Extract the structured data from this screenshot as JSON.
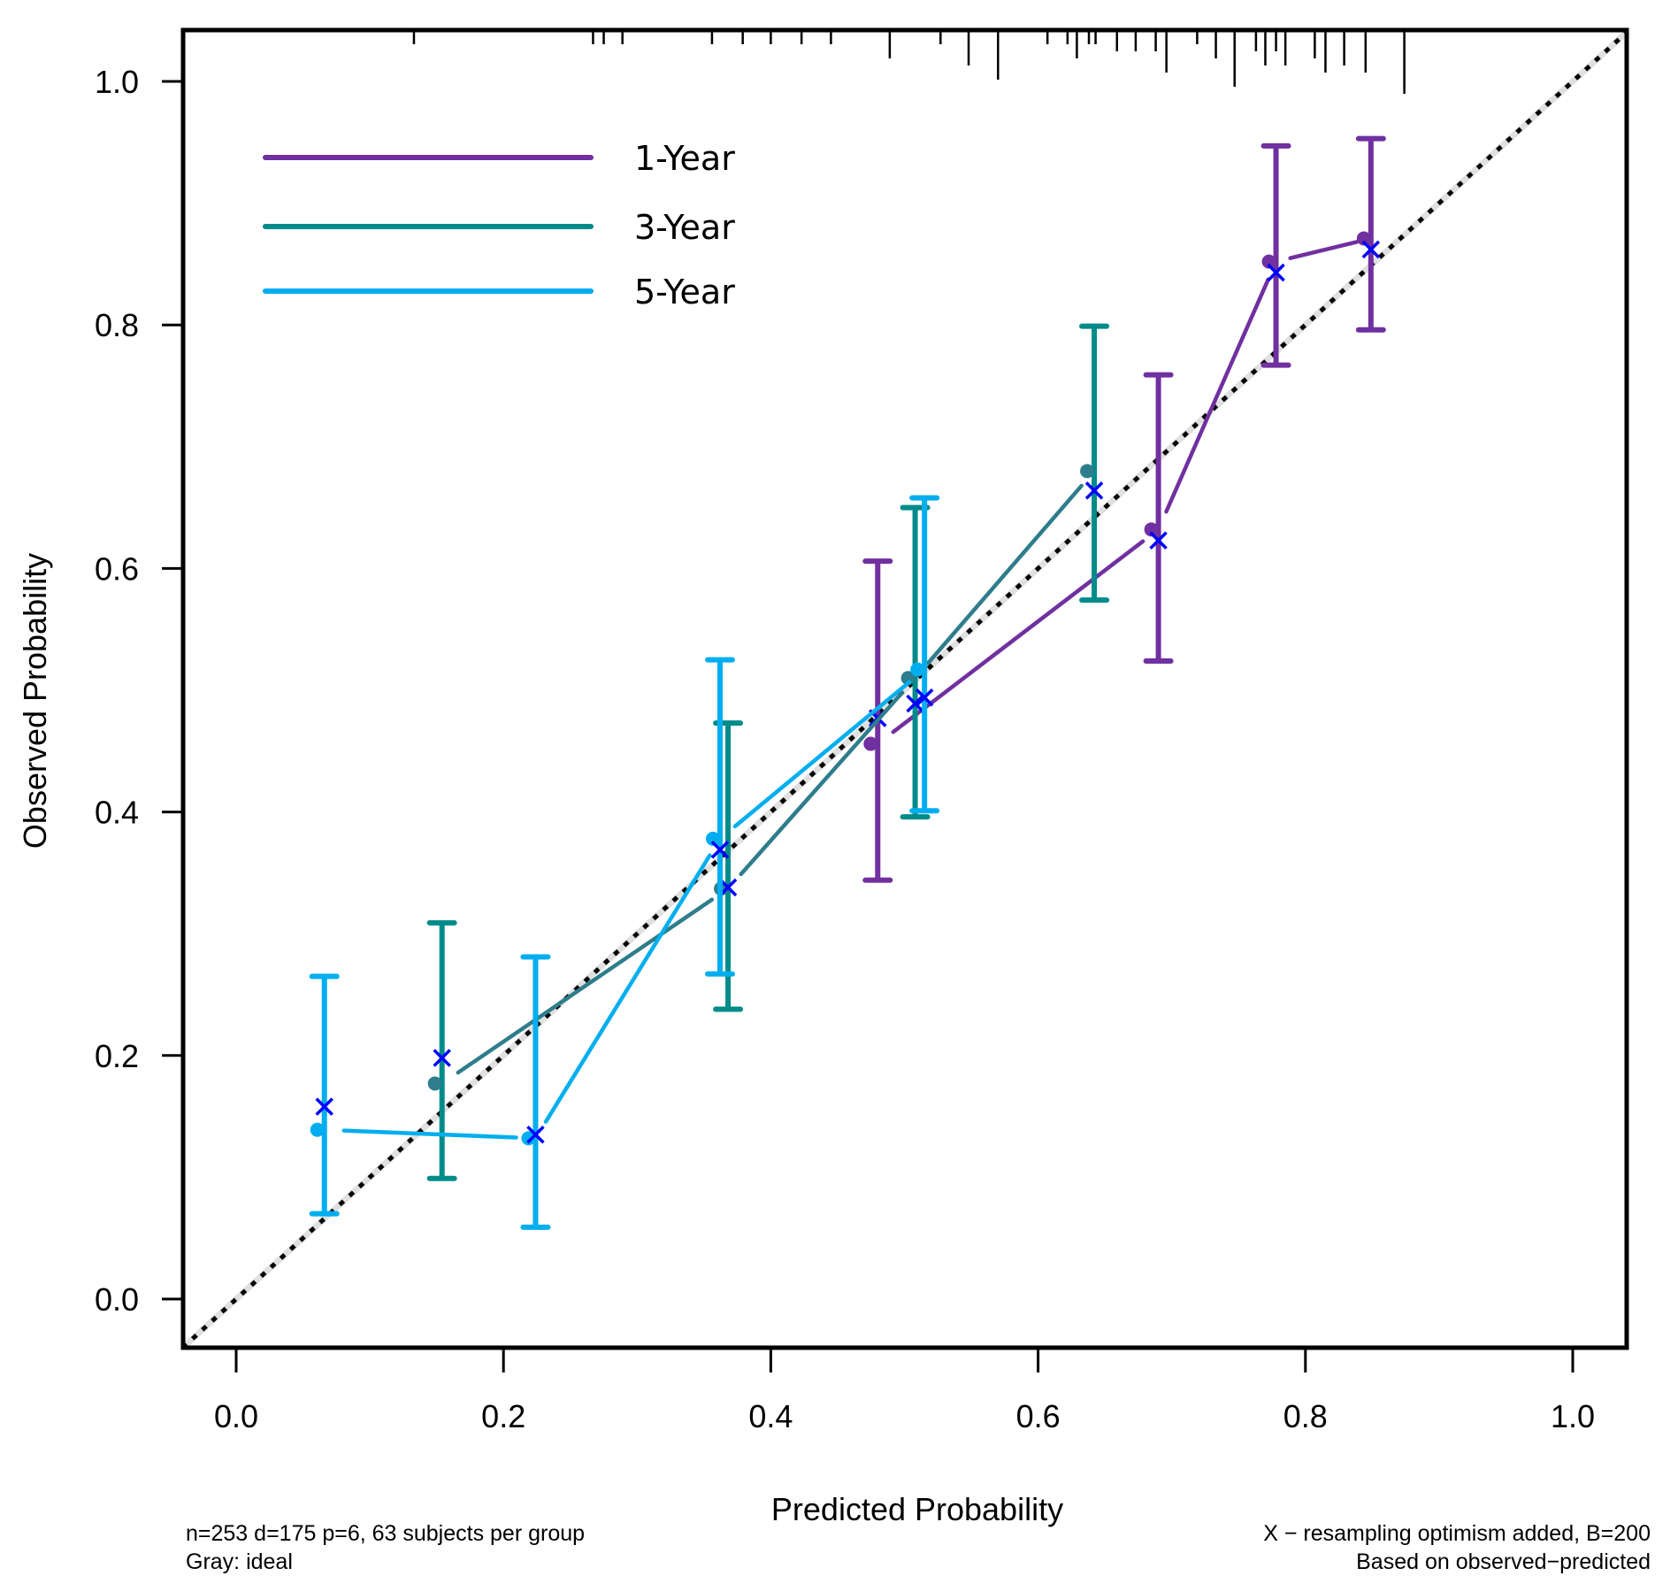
{
  "chart_data": {
    "type": "line",
    "title": "",
    "xlabel": "Predicted Probability",
    "ylabel": "Observed Probability",
    "xlim": [
      -0.04,
      1.04
    ],
    "ylim": [
      -0.04,
      1.04
    ],
    "x_ticks": [
      0.0,
      0.2,
      0.4,
      0.6,
      0.8,
      1.0
    ],
    "y_ticks": [
      0.0,
      0.2,
      0.4,
      0.6,
      0.8,
      1.0
    ],
    "x_tick_labels": [
      "0.0",
      "0.2",
      "0.4",
      "0.6",
      "0.8",
      "1.0"
    ],
    "y_tick_labels": [
      "0.0",
      "0.2",
      "0.4",
      "0.6",
      "0.8",
      "1.0"
    ],
    "grid": false,
    "legend_position": "top-left",
    "ideal_line": {
      "from": [
        -0.04,
        -0.04
      ],
      "to": [
        1.04,
        1.04
      ],
      "color": "#E0E0E0",
      "style": "gray line with black dotted overlay"
    },
    "series": [
      {
        "name": "1-Year",
        "color": "#7030A0",
        "dot_color": "#7030A0",
        "predicted": [
          0.48,
          0.69,
          0.778,
          0.849
        ],
        "observed": [
          0.456,
          0.632,
          0.852,
          0.871
        ],
        "corrected": [
          0.477,
          0.623,
          0.843,
          0.862
        ],
        "ci_lower": [
          0.344,
          0.524,
          0.767,
          0.796
        ],
        "ci_upper": [
          0.606,
          0.759,
          0.947,
          0.953
        ]
      },
      {
        "name": "3-Year",
        "color": "#008B8B",
        "dot_color": "#2E7D8C",
        "predicted": [
          0.154,
          0.368,
          0.508,
          0.642
        ],
        "observed": [
          0.177,
          0.337,
          0.51,
          0.68
        ],
        "corrected": [
          0.198,
          0.338,
          0.489,
          0.664
        ],
        "ci_lower": [
          0.099,
          0.238,
          0.396,
          0.574
        ],
        "ci_upper": [
          0.309,
          0.473,
          0.65,
          0.799
        ]
      },
      {
        "name": "5-Year",
        "color": "#00AEEF",
        "dot_color": "#00AEEF",
        "predicted": [
          0.066,
          0.224,
          0.362,
          0.515
        ],
        "observed": [
          0.139,
          0.132,
          0.378,
          0.517
        ],
        "corrected": [
          0.158,
          0.135,
          0.369,
          0.494
        ],
        "ci_lower": [
          0.07,
          0.059,
          0.267,
          0.401
        ],
        "ci_upper": [
          0.265,
          0.281,
          0.525,
          0.658
        ]
      }
    ],
    "corrected_marker": {
      "symbol": "x",
      "color": "#0000FF"
    },
    "rug": {
      "values": [
        0.133,
        0.267,
        0.275,
        0.289,
        0.356,
        0.379,
        0.4,
        0.423,
        0.445,
        0.489,
        0.527,
        0.548,
        0.57,
        0.607,
        0.622,
        0.629,
        0.638,
        0.643,
        0.659,
        0.673,
        0.688,
        0.696,
        0.719,
        0.733,
        0.747,
        0.763,
        0.77,
        0.778,
        0.785,
        0.807,
        0.815,
        0.829,
        0.845,
        0.874
      ],
      "counts": [
        1,
        1,
        1,
        1,
        1,
        1,
        1,
        1,
        1,
        3,
        1,
        4,
        6,
        1,
        1,
        3,
        1,
        1,
        2,
        2,
        2,
        5,
        1,
        3,
        7,
        2,
        4,
        2,
        4,
        3,
        5,
        4,
        5,
        8
      ]
    },
    "notes": {
      "bottom_left_line1": "n=253 d=175 p=6, 63 subjects per group",
      "bottom_left_line2": "Gray: ideal",
      "bottom_right_line1": "X − resampling optimism added, B=200",
      "bottom_right_line2": "Based on observed−predicted"
    }
  }
}
